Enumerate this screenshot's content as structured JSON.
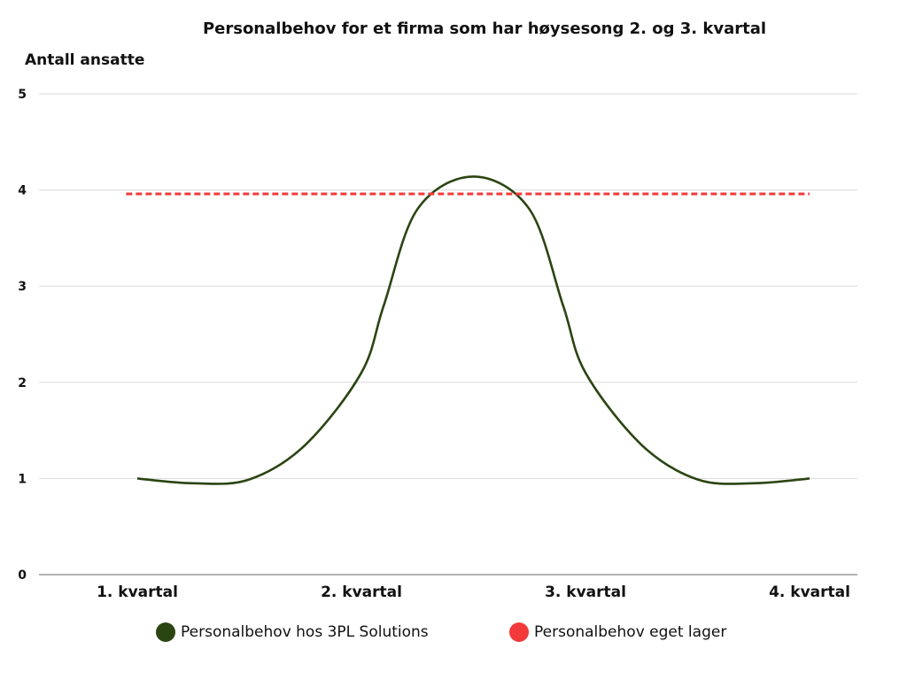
{
  "chart_data": {
    "type": "line",
    "title": "Personalbehov for et firma som har høysesong 2. og 3. kvartal",
    "ylabel": "Antall ansatte",
    "xlabel": "",
    "categories": [
      "1. kvartal",
      "2. kvartal",
      "3. kvartal",
      "4. kvartal"
    ],
    "ylim": [
      0,
      5
    ],
    "yticks": [
      0,
      1,
      2,
      3,
      4,
      5
    ],
    "grid": true,
    "legend_position": "bottom",
    "series": [
      {
        "name": "Personalbehov hos 3PL Solutions",
        "color": "#2b4512",
        "style": "smooth",
        "x": [
          1.0,
          1.25,
          1.5,
          1.75,
          2.0,
          2.1,
          2.25,
          2.5,
          2.75,
          2.9,
          3.0,
          3.25,
          3.5,
          3.75,
          4.0
        ],
        "values": [
          1.0,
          0.95,
          0.99,
          1.35,
          2.1,
          2.8,
          3.8,
          4.14,
          3.8,
          2.8,
          2.1,
          1.35,
          0.99,
          0.95,
          1.0
        ]
      },
      {
        "name": "Personalbehov eget lager",
        "color": "#f23a3a",
        "style": "dashed",
        "x": [
          0.95,
          4.0
        ],
        "values": [
          3.96,
          3.96
        ]
      }
    ]
  }
}
